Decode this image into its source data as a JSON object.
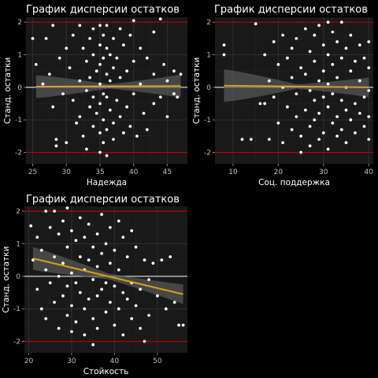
{
  "colors": {
    "background": "#000000",
    "panel": "#191919",
    "grid_major": "#2f2f2f",
    "grid_minor": "#232323",
    "point": "#ffffff",
    "zero_line": "#ffffff",
    "limit_line": "#c00000",
    "fit_line": "#d4a017",
    "ribbon": "#5a5a5a"
  },
  "chart_data": [
    {
      "type": "scatter",
      "title": "График дисперсии остатков",
      "xlabel": "Надежда",
      "ylabel": "Станд. остатки",
      "xlim": [
        24,
        48
      ],
      "ylim": [
        -2.35,
        2.15
      ],
      "xticks": [
        25,
        30,
        35,
        40,
        45
      ],
      "yticks": [
        -2,
        -1,
        0,
        1,
        2
      ],
      "hlines": [
        -2,
        0,
        2
      ],
      "fit": {
        "x0": 25.5,
        "y0": 0.02,
        "x1": 47,
        "y1": 0.04,
        "se0": 0.35,
        "semid": 0.07,
        "se1": 0.35
      },
      "points": [
        [
          25,
          1.5
        ],
        [
          25.5,
          0.7
        ],
        [
          26.5,
          0.1
        ],
        [
          27,
          1.5
        ],
        [
          27.5,
          0.4
        ],
        [
          28,
          1.9
        ],
        [
          28,
          -0.6
        ],
        [
          28.5,
          -1.6
        ],
        [
          28.5,
          -1.8
        ],
        [
          29,
          0.9
        ],
        [
          29.5,
          -0.2
        ],
        [
          30,
          1.2
        ],
        [
          30,
          -1.7
        ],
        [
          30.5,
          0.6
        ],
        [
          31,
          1.6
        ],
        [
          31,
          -0.4
        ],
        [
          31.5,
          -1.1
        ],
        [
          32,
          1.9
        ],
        [
          32,
          0.2
        ],
        [
          32,
          -0.9
        ],
        [
          32.5,
          1.2
        ],
        [
          32.5,
          -1.5
        ],
        [
          33,
          0.8
        ],
        [
          33,
          -0.1
        ],
        [
          33,
          -1.9
        ],
        [
          33.5,
          1.5
        ],
        [
          33.5,
          0.3
        ],
        [
          33.5,
          -0.6
        ],
        [
          34,
          1.8
        ],
        [
          34,
          1.0
        ],
        [
          34,
          -0.3
        ],
        [
          34,
          -1.2
        ],
        [
          34.5,
          0.5
        ],
        [
          34.5,
          -0.8
        ],
        [
          35,
          1.9
        ],
        [
          35,
          1.3
        ],
        [
          35,
          0.7
        ],
        [
          35,
          0.1
        ],
        [
          35,
          -0.5
        ],
        [
          35,
          -1.4
        ],
        [
          35,
          -2.0
        ],
        [
          35.5,
          1.6
        ],
        [
          35.5,
          0.9
        ],
        [
          35.5,
          -0.2
        ],
        [
          35.5,
          -1.0
        ],
        [
          35.5,
          -1.7
        ],
        [
          36,
          1.9
        ],
        [
          36,
          1.2
        ],
        [
          36,
          0.4
        ],
        [
          36,
          -0.3
        ],
        [
          36,
          -1.3
        ],
        [
          36,
          -2.1
        ],
        [
          36.5,
          1.0
        ],
        [
          36.5,
          0.2
        ],
        [
          36.5,
          -0.7
        ],
        [
          37,
          1.5
        ],
        [
          37,
          0.6
        ],
        [
          37,
          -1.1
        ],
        [
          37,
          -1.6
        ],
        [
          37.5,
          0.9
        ],
        [
          37.5,
          -0.4
        ],
        [
          38,
          1.8
        ],
        [
          38,
          0.3
        ],
        [
          38,
          -0.9
        ],
        [
          38.5,
          1.3
        ],
        [
          38.5,
          -1.4
        ],
        [
          39,
          0.5
        ],
        [
          39,
          -0.6
        ],
        [
          39.5,
          1.6
        ],
        [
          39.5,
          -1.2
        ],
        [
          40,
          2.05
        ],
        [
          40,
          0.8
        ],
        [
          40,
          -0.2
        ],
        [
          40.5,
          -1.5
        ],
        [
          41,
          1.2
        ],
        [
          41,
          0.1
        ],
        [
          41.5,
          -0.8
        ],
        [
          42,
          0.9
        ],
        [
          42,
          -1.3
        ],
        [
          43,
          1.7
        ],
        [
          43,
          0.4
        ],
        [
          43,
          -0.5
        ],
        [
          44,
          2.1
        ],
        [
          44,
          -0.3
        ],
        [
          44.5,
          0.7
        ],
        [
          45,
          0.2
        ],
        [
          45,
          -0.9
        ],
        [
          46,
          0.5
        ],
        [
          46,
          -0.2
        ],
        [
          46.5,
          -0.3
        ],
        [
          47,
          0.4
        ]
      ]
    },
    {
      "type": "scatter",
      "title": "График дисперсии остатков",
      "xlabel": "Соц. поддержка",
      "ylabel": "Станд. остатки",
      "xlim": [
        6,
        41
      ],
      "ylim": [
        -2.35,
        2.15
      ],
      "xticks": [
        10,
        20,
        30,
        40
      ],
      "yticks": [
        -2,
        -1,
        0,
        1,
        2
      ],
      "hlines": [
        -2,
        0,
        2
      ],
      "fit": {
        "x0": 8,
        "y0": 0.05,
        "x1": 40,
        "y1": 0.0,
        "se0": 0.5,
        "semid": 0.07,
        "se1": 0.3
      },
      "points": [
        [
          8,
          1.3
        ],
        [
          8,
          1.0
        ],
        [
          12,
          -1.6
        ],
        [
          14,
          -1.6
        ],
        [
          15,
          1.95
        ],
        [
          16,
          -0.5
        ],
        [
          17,
          -0.5
        ],
        [
          17,
          1.0
        ],
        [
          18,
          0.2
        ],
        [
          18,
          -1.6
        ],
        [
          19,
          1.4
        ],
        [
          19,
          -0.3
        ],
        [
          20,
          0.7
        ],
        [
          20,
          -1.1
        ],
        [
          21,
          1.6
        ],
        [
          21,
          0.0
        ],
        [
          21,
          -1.7
        ],
        [
          22,
          0.9
        ],
        [
          22,
          -0.6
        ],
        [
          23,
          1.2
        ],
        [
          23,
          0.3
        ],
        [
          23,
          -1.3
        ],
        [
          24,
          1.5
        ],
        [
          24,
          -0.2
        ],
        [
          24,
          -0.9
        ],
        [
          25,
          0.6
        ],
        [
          25,
          -1.5
        ],
        [
          25,
          -2.0
        ],
        [
          26,
          1.8
        ],
        [
          26,
          0.4
        ],
        [
          26,
          -0.7
        ],
        [
          27,
          1.1
        ],
        [
          27,
          -0.1
        ],
        [
          27,
          -1.2
        ],
        [
          27,
          -1.8
        ],
        [
          28,
          1.6
        ],
        [
          28,
          0.8
        ],
        [
          28,
          -0.4
        ],
        [
          28,
          -1.0
        ],
        [
          29,
          1.9
        ],
        [
          29,
          0.2
        ],
        [
          29,
          -0.8
        ],
        [
          29,
          -1.6
        ],
        [
          30,
          1.3
        ],
        [
          30,
          0.5
        ],
        [
          30,
          -0.3
        ],
        [
          30,
          -1.4
        ],
        [
          31,
          2.0
        ],
        [
          31,
          1.0
        ],
        [
          31,
          0.1
        ],
        [
          31,
          -0.6
        ],
        [
          31,
          -1.9
        ],
        [
          32,
          1.7
        ],
        [
          32,
          0.7
        ],
        [
          32,
          -0.2
        ],
        [
          32,
          -1.1
        ],
        [
          33,
          1.4
        ],
        [
          33,
          0.3
        ],
        [
          33,
          -0.9
        ],
        [
          33,
          -1.5
        ],
        [
          34,
          2.0
        ],
        [
          34,
          0.9
        ],
        [
          34,
          -0.4
        ],
        [
          34,
          -1.3
        ],
        [
          35,
          1.2
        ],
        [
          35,
          0.0
        ],
        [
          35,
          -0.7
        ],
        [
          35,
          -1.7
        ],
        [
          36,
          1.6
        ],
        [
          36,
          0.5
        ],
        [
          36,
          -1.0
        ],
        [
          37,
          0.8
        ],
        [
          37,
          -0.5
        ],
        [
          37,
          -1.4
        ],
        [
          38,
          1.3
        ],
        [
          38,
          0.2
        ],
        [
          38,
          -0.8
        ],
        [
          39,
          0.9
        ],
        [
          39,
          -0.3
        ],
        [
          39,
          -1.2
        ],
        [
          40,
          1.4
        ],
        [
          40,
          0.6
        ],
        [
          40,
          -0.1
        ],
        [
          40,
          -0.9
        ],
        [
          40,
          -1.6
        ]
      ]
    },
    {
      "type": "scatter",
      "title": "График дисперсии остатков",
      "xlabel": "Стойкость",
      "ylabel": "Станд. остатки",
      "xlim": [
        19,
        57
      ],
      "ylim": [
        -2.35,
        2.15
      ],
      "xticks": [
        20,
        30,
        40,
        50
      ],
      "yticks": [
        -2,
        -1,
        0,
        1,
        2
      ],
      "hlines": [
        -2,
        0,
        2
      ],
      "fit": {
        "x0": 21,
        "y0": 0.55,
        "x1": 56,
        "y1": -0.55,
        "se0": 0.35,
        "semid": 0.09,
        "se1": 0.3
      },
      "points": [
        [
          20.5,
          1.55
        ],
        [
          21,
          0.5
        ],
        [
          22,
          1.2
        ],
        [
          22,
          -0.4
        ],
        [
          23,
          0.8
        ],
        [
          23,
          -1.0
        ],
        [
          24,
          2.0
        ],
        [
          24,
          0.2
        ],
        [
          24,
          -1.3
        ],
        [
          25,
          1.5
        ],
        [
          25,
          -0.2
        ],
        [
          26,
          2.0
        ],
        [
          26,
          0.6
        ],
        [
          26,
          -0.8
        ],
        [
          27,
          1.3
        ],
        [
          27,
          0.0
        ],
        [
          27,
          -1.6
        ],
        [
          28,
          1.7
        ],
        [
          28,
          0.4
        ],
        [
          28,
          -0.6
        ],
        [
          29,
          2.1
        ],
        [
          29,
          0.9
        ],
        [
          29,
          -0.3
        ],
        [
          29,
          -1.2
        ],
        [
          30,
          1.4
        ],
        [
          30,
          0.1
        ],
        [
          30,
          -0.9
        ],
        [
          30,
          -1.7
        ],
        [
          31,
          1.1
        ],
        [
          31,
          -0.2
        ],
        [
          31,
          -1.4
        ],
        [
          32,
          1.8
        ],
        [
          32,
          0.6
        ],
        [
          32,
          -0.5
        ],
        [
          33,
          1.2
        ],
        [
          33,
          0.2
        ],
        [
          33,
          -1.0
        ],
        [
          33,
          -1.8
        ],
        [
          34,
          1.6
        ],
        [
          34,
          0.5
        ],
        [
          34,
          -0.7
        ],
        [
          35,
          0.9
        ],
        [
          35,
          -0.1
        ],
        [
          35,
          -1.3
        ],
        [
          35,
          -2.1
        ],
        [
          36,
          1.3
        ],
        [
          36,
          0.3
        ],
        [
          36,
          -0.6
        ],
        [
          36,
          -1.6
        ],
        [
          37,
          1.9
        ],
        [
          37,
          0.7
        ],
        [
          37,
          -0.4
        ],
        [
          38,
          1.0
        ],
        [
          38,
          -0.2
        ],
        [
          38,
          -1.1
        ],
        [
          39,
          1.5
        ],
        [
          39,
          0.4
        ],
        [
          39,
          -0.8
        ],
        [
          40,
          0.8
        ],
        [
          40,
          -0.3
        ],
        [
          40,
          -1.5
        ],
        [
          41,
          1.7
        ],
        [
          41,
          0.2
        ],
        [
          41,
          -1.0
        ],
        [
          42,
          1.2
        ],
        [
          42,
          -0.5
        ],
        [
          42,
          -1.8
        ],
        [
          43,
          0.6
        ],
        [
          43,
          -0.7
        ],
        [
          44,
          1.4
        ],
        [
          44,
          -0.2
        ],
        [
          44,
          -1.3
        ],
        [
          45,
          0.9
        ],
        [
          45,
          -0.9
        ],
        [
          46,
          -0.4
        ],
        [
          46,
          -1.6
        ],
        [
          47,
          -2.0
        ],
        [
          47,
          0.5
        ],
        [
          48,
          -0.1
        ],
        [
          48,
          -1.2
        ],
        [
          49,
          0.4
        ],
        [
          50,
          -0.6
        ],
        [
          51,
          0.5
        ],
        [
          52,
          -1.0
        ],
        [
          53,
          0.6
        ],
        [
          54,
          -0.8
        ],
        [
          55,
          -1.5
        ],
        [
          56,
          -1.5
        ]
      ]
    }
  ]
}
